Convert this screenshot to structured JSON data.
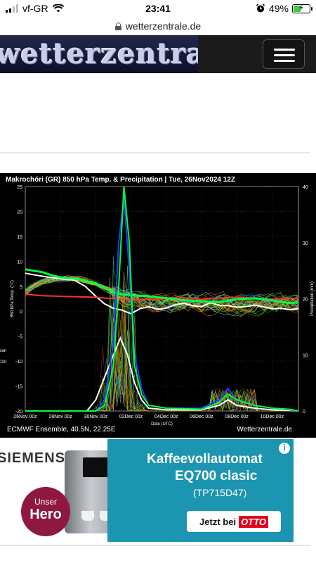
{
  "status_bar": {
    "carrier": "vf-GR",
    "time": "23:41",
    "battery_percent": "49%",
    "battery_level": 0.49
  },
  "browser": {
    "url": "wetterzentrale.de"
  },
  "header": {
    "logo_text": "wetterzentrale",
    "menu_icon": "hamburger-icon"
  },
  "chart": {
    "title": "Makrochóri  (GR)  850 hPa Temp. & Precipitation | Tue, 26Nov2024 12Z",
    "footer_left": "ECMWF Ensemble, 40.5N, 22.25E",
    "footer_right": "Wetterzentrale.de",
    "left_side_text": [
      "ean",
      "020"
    ]
  },
  "chart_data": {
    "type": "line",
    "title": "Makrochóri  (GR)  850 hPa Temp. & Precipitation | Tue, 26Nov2024 12Z",
    "xlabel": "Date (UTC)",
    "ylabel": "850 hPa Temp. (°C)",
    "ylabel_right": "Precipitation (mm)",
    "x_ticks": [
      "26Nov 00z",
      "28Nov 00z",
      "30Nov 00z",
      "02Dec 00z",
      "04Dec 00z",
      "06Dec 00z",
      "08Dec 00z",
      "10Dec 00z"
    ],
    "y_ticks_left": [
      25,
      20,
      15,
      10,
      5,
      0,
      -5,
      -10,
      -15,
      -20
    ],
    "y_ticks_right": [
      40,
      30,
      20,
      10,
      0
    ],
    "ylim_left": [
      -20,
      25
    ],
    "ylim_right": [
      0,
      40
    ],
    "xlim_days": [
      0,
      15.5
    ],
    "grid": true,
    "series": [
      {
        "color": "#ffffff",
        "axis": "left",
        "x": [
          0,
          1,
          2,
          2.8,
          3.4,
          4,
          4.5,
          5,
          5.5,
          6,
          6.5,
          7,
          7.5,
          8,
          8.5,
          9,
          9.5,
          10,
          10.5,
          11,
          11.5,
          12,
          12.5,
          13,
          13.5,
          14,
          14.5,
          15,
          15.5
        ],
        "y": [
          7.6,
          7,
          6.5,
          6.2,
          5,
          3,
          1.5,
          0.6,
          0.2,
          -0.5,
          0.5,
          0.9,
          0.4,
          0.6,
          1.3,
          1.6,
          1.1,
          0.9,
          1.7,
          1.2,
          1.1,
          0.8,
          0.9,
          1.2,
          0.9,
          0.5,
          0.6,
          0.3,
          0.5
        ]
      },
      {
        "color": "#ff3030",
        "axis": "left",
        "x": [
          0,
          1,
          2,
          3,
          4,
          5,
          6,
          7,
          8,
          9,
          10,
          11,
          12,
          13,
          14,
          15,
          15.5
        ],
        "y": [
          3.4,
          3.1,
          3,
          2.9,
          2.8,
          2.5,
          2.2,
          2.4,
          2.5,
          2.7,
          2.4,
          2.6,
          2.8,
          2.6,
          2.4,
          2.6,
          2.5
        ]
      },
      {
        "color": "#00ff40",
        "axis": "left",
        "x": [
          0,
          0.5,
          1,
          1.5,
          2,
          2.5,
          3,
          3.5,
          4,
          4.5,
          5,
          5.5,
          6,
          7,
          8,
          9,
          10,
          11,
          12,
          13,
          14,
          15,
          15.5
        ],
        "y": [
          8.4,
          8.1,
          7.8,
          7.2,
          6.8,
          6.6,
          6.5,
          6,
          5.6,
          4.6,
          3.8,
          3.4,
          3.2,
          3,
          2.6,
          2.2,
          2,
          1.8,
          2.4,
          2.6,
          2.2,
          1.6,
          1.8
        ]
      },
      {
        "color": "#ffffff",
        "axis": "right",
        "x": [
          0,
          2,
          3,
          3.5,
          4,
          4.5,
          5,
          5.4,
          5.8,
          6.2,
          6.6,
          7,
          8,
          9,
          10,
          11,
          11.5,
          12,
          13,
          14,
          15,
          15.5
        ],
        "y": [
          0,
          0,
          0,
          0,
          2,
          6,
          10,
          13,
          10,
          5,
          2,
          0.5,
          0.2,
          0.2,
          0.2,
          1,
          2,
          1,
          0.5,
          0.2,
          0.1,
          0
        ]
      },
      {
        "color": "#2040ff",
        "axis": "right",
        "x": [
          0,
          3,
          4,
          4.5,
          5,
          5.3,
          5.6,
          5.9,
          6.2,
          6.6,
          7,
          8,
          10,
          11,
          11.5,
          12,
          13,
          14,
          15,
          15.5
        ],
        "y": [
          0,
          0,
          0,
          2,
          12,
          30,
          38,
          25,
          10,
          4,
          1,
          0.5,
          0.5,
          2,
          4,
          2,
          1,
          0.5,
          0.2,
          0
        ]
      },
      {
        "color": "#00ff40",
        "axis": "right",
        "x": [
          0,
          3,
          4,
          4.5,
          5,
          5.3,
          5.6,
          5.9,
          6.2,
          6.6,
          7,
          8,
          10,
          11,
          11.5,
          12,
          13,
          14,
          15,
          15.5
        ],
        "y": [
          0,
          0,
          0,
          1,
          8,
          22,
          40,
          30,
          8,
          3,
          1,
          0.5,
          0.3,
          1.5,
          3,
          2,
          1,
          0.5,
          0.3,
          0
        ]
      }
    ]
  },
  "ad": {
    "brand": "SIEMENS",
    "badge_line1": "Unser",
    "badge_line2": "Hero",
    "title_line1": "Kaffeevollautomat",
    "title_line2": "EQ700 clasic",
    "title_line3": "(TP715D47)",
    "cta_text": "Jetzt bei",
    "cta_brand": "OTTO",
    "info_icon": "i",
    "colors": {
      "panel": "#1c95b0",
      "badge": "#8e1840",
      "otto": "#e3001b"
    }
  }
}
